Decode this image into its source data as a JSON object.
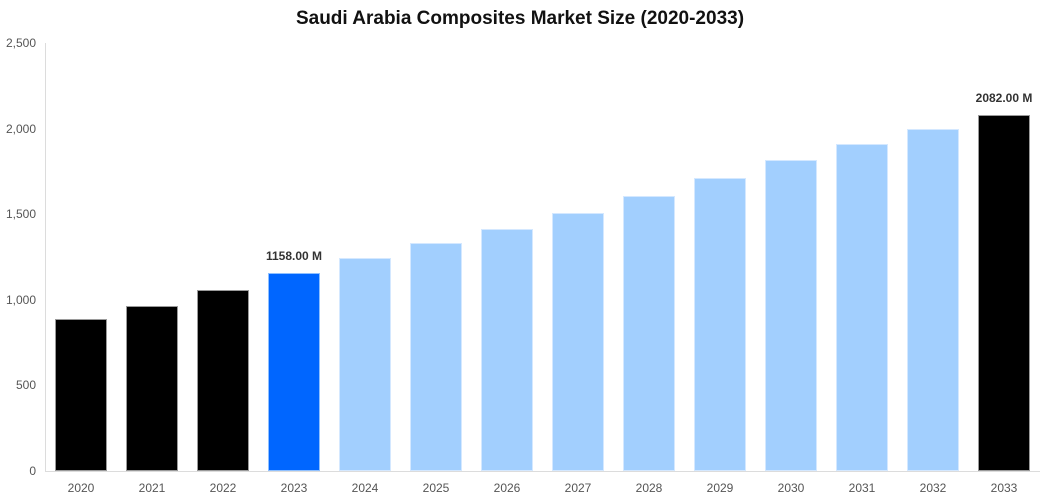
{
  "title": "Saudi Arabia Composites Market Size (2020-2033)",
  "colors": {
    "historical": "#000000",
    "base_year": "#0066ff",
    "forecast": "#a2cffe",
    "axis": "#dcdcdc"
  },
  "yaxis": {
    "ticks": [
      "0",
      "500",
      "1,000",
      "1,500",
      "2,000",
      "2,500"
    ]
  },
  "xaxis": {
    "ticks": [
      "2020",
      "2021",
      "2022",
      "2023",
      "2024",
      "2025",
      "2026",
      "2027",
      "2028",
      "2029",
      "2030",
      "2031",
      "2032",
      "2033"
    ]
  },
  "labels": {
    "base_year_value": "1158.00 M",
    "final_year_value": "2082.00 M"
  },
  "chart_data": {
    "type": "bar",
    "title": "Saudi Arabia Composites Market Size (2020-2033)",
    "xlabel": "",
    "ylabel": "",
    "ylim": [
      0,
      2500
    ],
    "yticks": [
      0,
      500,
      1000,
      1500,
      2000,
      2500
    ],
    "grid": false,
    "legend": null,
    "categories": [
      "2020",
      "2021",
      "2022",
      "2023",
      "2024",
      "2025",
      "2026",
      "2027",
      "2028",
      "2029",
      "2030",
      "2031",
      "2032",
      "2033"
    ],
    "values": [
      889,
      965,
      1058,
      1158,
      1245,
      1333,
      1414,
      1508,
      1607,
      1712,
      1817,
      1910,
      2000,
      2082
    ],
    "bar_kinds": [
      "hist",
      "hist",
      "hist",
      "base",
      "fc",
      "fc",
      "fc",
      "fc",
      "fc",
      "fc",
      "fc",
      "fc",
      "fc",
      "hist"
    ],
    "annotations": [
      {
        "category": "2023",
        "text": "1158.00 M"
      },
      {
        "category": "2033",
        "text": "2082.00 M"
      }
    ]
  }
}
